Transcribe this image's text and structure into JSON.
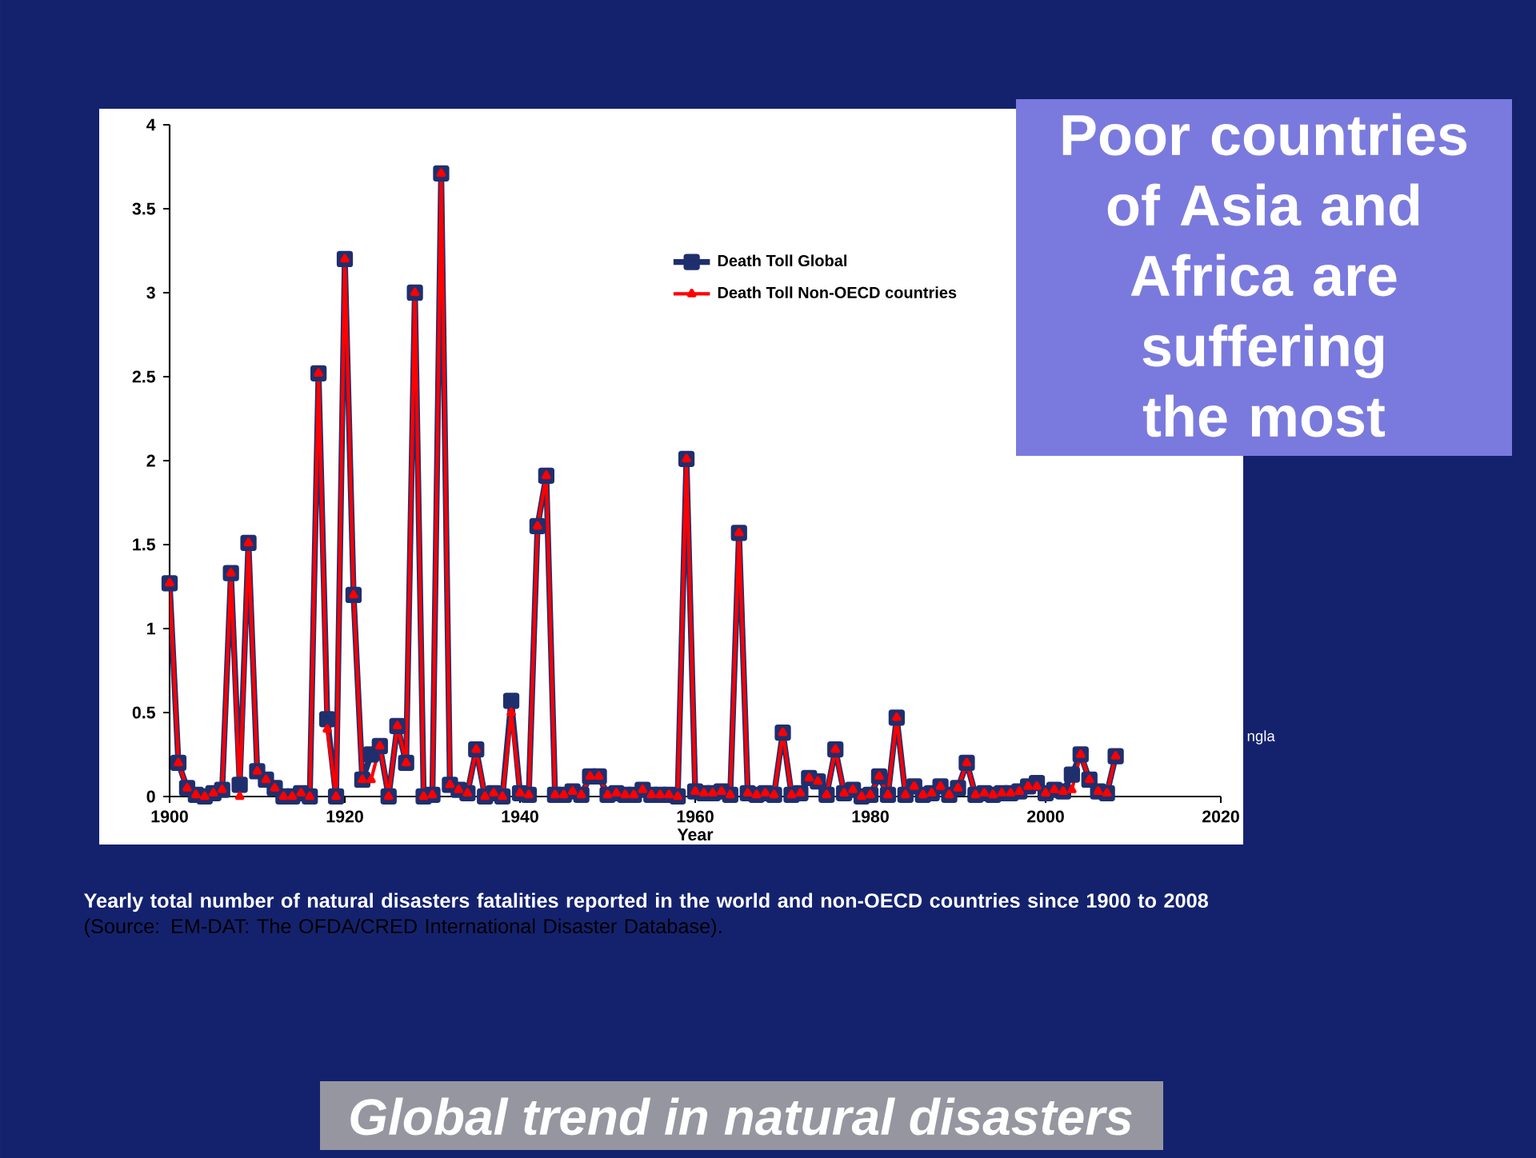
{
  "chart_data": {
    "type": "line",
    "title": "Global trend in natural disasters",
    "xlabel": "Year",
    "annotations": [
      "Poor countries of Asia and Africa are suffering the most",
      "Yearly total number of natural disasters  fatalities reported in the world and non-OECD countries since 1900 to 2008",
      "(Source: EM-DAT: The OFDA/CRED International Disaster Database).",
      "ngla"
    ],
    "x": [
      1900,
      1901,
      1902,
      1903,
      1904,
      1905,
      1906,
      1907,
      1908,
      1909,
      1910,
      1911,
      1912,
      1913,
      1914,
      1915,
      1916,
      1917,
      1918,
      1919,
      1920,
      1921,
      1922,
      1923,
      1924,
      1925,
      1926,
      1927,
      1928,
      1929,
      1930,
      1931,
      1932,
      1933,
      1934,
      1935,
      1936,
      1937,
      1938,
      1939,
      1940,
      1941,
      1942,
      1943,
      1944,
      1945,
      1946,
      1947,
      1948,
      1949,
      1950,
      1951,
      1952,
      1953,
      1954,
      1955,
      1956,
      1957,
      1958,
      1959,
      1960,
      1961,
      1962,
      1963,
      1964,
      1965,
      1966,
      1967,
      1968,
      1969,
      1970,
      1971,
      1972,
      1973,
      1974,
      1975,
      1976,
      1977,
      1978,
      1979,
      1980,
      1981,
      1982,
      1983,
      1984,
      1985,
      1986,
      1987,
      1988,
      1989,
      1990,
      1991,
      1992,
      1993,
      1994,
      1995,
      1996,
      1997,
      1998,
      1999,
      2000,
      2001,
      2002,
      2003,
      2004,
      2005,
      2006,
      2007,
      2008
    ],
    "series": [
      {
        "name": "Death Toll Global",
        "color": "#1f2f6e",
        "marker": "square",
        "values": [
          1.27,
          0.2,
          0.05,
          0.01,
          0.0,
          0.02,
          0.04,
          1.33,
          0.07,
          1.51,
          0.15,
          0.1,
          0.05,
          0.0,
          0.0,
          0.02,
          0.0,
          2.52,
          0.46,
          0.0,
          3.2,
          1.2,
          0.1,
          0.25,
          0.3,
          0.0,
          0.42,
          0.2,
          3.0,
          0.0,
          0.01,
          3.71,
          0.07,
          0.04,
          0.02,
          0.28,
          0.0,
          0.02,
          0.0,
          0.57,
          0.02,
          0.01,
          1.61,
          1.91,
          0.01,
          0.01,
          0.03,
          0.01,
          0.12,
          0.12,
          0.01,
          0.02,
          0.01,
          0.01,
          0.04,
          0.01,
          0.01,
          0.01,
          0.0,
          2.01,
          0.03,
          0.02,
          0.02,
          0.03,
          0.01,
          1.57,
          0.02,
          0.01,
          0.02,
          0.01,
          0.38,
          0.01,
          0.02,
          0.11,
          0.09,
          0.01,
          0.28,
          0.02,
          0.04,
          0.0,
          0.01,
          0.12,
          0.01,
          0.47,
          0.01,
          0.06,
          0.01,
          0.02,
          0.06,
          0.01,
          0.05,
          0.2,
          0.01,
          0.02,
          0.01,
          0.02,
          0.02,
          0.03,
          0.06,
          0.08,
          0.02,
          0.04,
          0.03,
          0.13,
          0.25,
          0.1,
          0.03,
          0.02,
          0.24
        ]
      },
      {
        "name": "Death Toll Non-OECD countries",
        "color": "#ff0000",
        "marker": "triangle",
        "values": [
          1.27,
          0.2,
          0.05,
          0.01,
          0.0,
          0.02,
          0.04,
          1.33,
          0.0,
          1.51,
          0.15,
          0.1,
          0.05,
          0.0,
          0.0,
          0.02,
          0.0,
          2.52,
          0.4,
          0.0,
          3.2,
          1.2,
          0.1,
          0.1,
          0.3,
          0.0,
          0.42,
          0.2,
          3.0,
          0.0,
          0.01,
          3.71,
          0.07,
          0.04,
          0.02,
          0.28,
          0.0,
          0.02,
          0.0,
          0.5,
          0.02,
          0.01,
          1.61,
          1.91,
          0.01,
          0.01,
          0.03,
          0.01,
          0.12,
          0.12,
          0.01,
          0.02,
          0.01,
          0.01,
          0.04,
          0.01,
          0.01,
          0.01,
          0.0,
          2.01,
          0.03,
          0.02,
          0.02,
          0.03,
          0.01,
          1.57,
          0.02,
          0.01,
          0.02,
          0.01,
          0.38,
          0.01,
          0.02,
          0.11,
          0.09,
          0.01,
          0.28,
          0.02,
          0.04,
          0.0,
          0.01,
          0.12,
          0.01,
          0.47,
          0.01,
          0.06,
          0.01,
          0.02,
          0.06,
          0.01,
          0.05,
          0.2,
          0.01,
          0.02,
          0.01,
          0.02,
          0.02,
          0.03,
          0.06,
          0.06,
          0.02,
          0.04,
          0.03,
          0.04,
          0.25,
          0.1,
          0.03,
          0.02,
          0.24
        ]
      }
    ],
    "xlim": [
      1900,
      2020
    ],
    "xticks": [
      1900,
      1920,
      1940,
      1960,
      1980,
      2000,
      2020
    ],
    "ylim": [
      0,
      4
    ],
    "yticks": [
      0,
      0.5,
      1,
      1.5,
      2,
      2.5,
      3,
      3.5,
      4
    ],
    "legend": "top"
  }
}
